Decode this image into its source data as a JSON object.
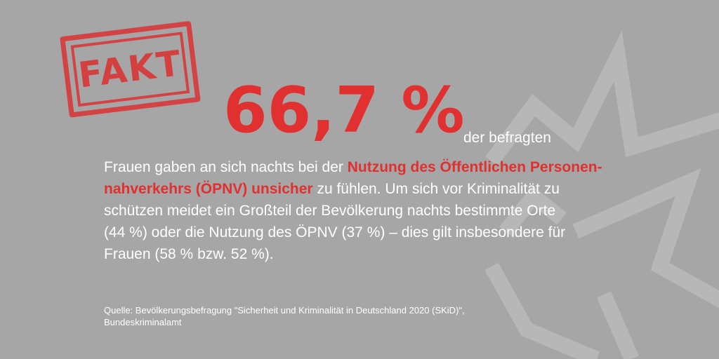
{
  "colors": {
    "background": "#a6a6a6",
    "accent_red": "#e0302f",
    "text": "#ffffff",
    "watermark": "#b9b9b9"
  },
  "stamp": {
    "label": "FAKT"
  },
  "headline": {
    "value": "66,7 %",
    "lead": "der befragten"
  },
  "body": {
    "line1_prefix": "Frauen gaben an sich nachts bei der ",
    "line1_highlight": "Nutzung des Öffentlichen Personen-",
    "line2_highlight": "nahverkehrs (ÖPNV) unsicher",
    "line2_suffix": " zu fühlen. Um sich vor Kriminalität zu",
    "line3": "schützen meidet ein Großteil der Bevölkerung nachts bestimmte Orte",
    "line4": "(44 %) oder die Nutzung des ÖPNV (37 %) – dies gilt insbesondere für",
    "line5": "Frauen (58 % bzw. 52 %)."
  },
  "source": {
    "line1": "Quelle: Bevölkerungsbefragung \"Sicherheit und Kriminalität in Deutschland 2020 (SKiD)\",",
    "line2": "Bundeskriminalamt"
  }
}
